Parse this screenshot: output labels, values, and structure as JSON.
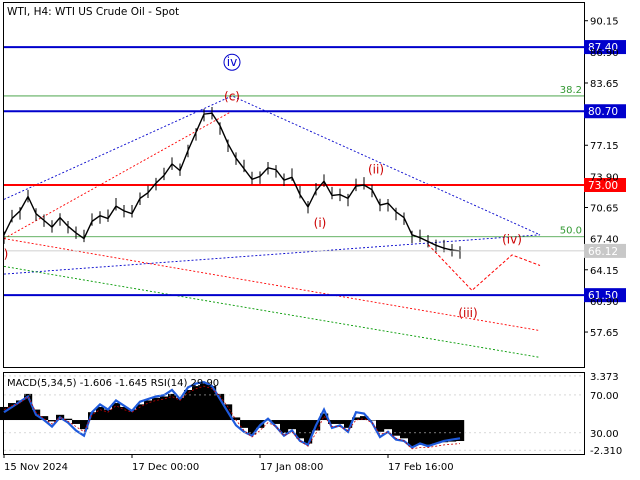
{
  "chart_data": {
    "type": "line",
    "title": "WTI, H4:  WTI US Crude Oil - Spot",
    "symbol": "WTI",
    "timeframe": "H4",
    "instrument": "WTI US Crude Oil - Spot",
    "y_axis": {
      "ticks": [
        90.15,
        83.65,
        77.15,
        70.65,
        64.15,
        57.65
      ],
      "ticks_partial": [
        "86.90",
        "73.90",
        "67.40",
        "60.90"
      ],
      "ylim": [
        54.0,
        92.0
      ]
    },
    "x_axis": {
      "ticks": [
        "15 Nov 2024",
        "17 Dec 00:00",
        "17 Jan 08:00",
        "17 Feb 16:00"
      ],
      "tick_index": [
        0,
        32,
        64,
        96
      ],
      "xlim": [
        0,
        145
      ]
    },
    "price_series": {
      "name": "",
      "color": "#000000",
      "x": [
        0,
        2,
        4,
        6,
        8,
        10,
        12,
        14,
        16,
        18,
        20,
        22,
        24,
        26,
        28,
        30,
        32,
        34,
        36,
        38,
        40,
        42,
        44,
        46,
        48,
        50,
        52,
        54,
        56,
        58,
        60,
        62,
        64,
        66,
        68,
        70,
        72,
        74,
        76,
        78,
        80,
        82,
        84,
        86,
        88,
        90,
        92,
        94,
        96,
        98,
        100,
        102,
        104,
        106,
        108,
        110,
        112,
        114
      ],
      "y": [
        67.8,
        69.5,
        70.3,
        71.8,
        70.0,
        69.3,
        68.6,
        69.6,
        68.7,
        68.0,
        67.4,
        69.2,
        69.8,
        69.5,
        70.8,
        70.3,
        70.0,
        71.6,
        72.2,
        73.2,
        74.0,
        75.2,
        74.5,
        76.6,
        78.5,
        80.4,
        80.5,
        79.2,
        77.3,
        75.8,
        74.7,
        73.6,
        73.9,
        74.8,
        74.6,
        73.5,
        73.8,
        72.0,
        70.7,
        72.4,
        73.4,
        71.9,
        72.0,
        71.6,
        72.9,
        73.0,
        72.5,
        70.9,
        71.1,
        70.2,
        69.6,
        67.8,
        67.5,
        67.1,
        66.7,
        66.4,
        66.2,
        66.12
      ]
    },
    "current_price": "66.12",
    "horizontal_levels": [
      {
        "value": 87.4,
        "label": "87.40",
        "color": "#0000cc"
      },
      {
        "value": 80.7,
        "label": "80.70",
        "color": "#0000cc"
      },
      {
        "value": 73.0,
        "label": "73.00",
        "color": "#ff0000"
      },
      {
        "value": 61.5,
        "label": "61.50",
        "color": "#0000cc"
      }
    ],
    "fib_levels": [
      {
        "value": 82.3,
        "label": "38.2",
        "color": "#339933"
      },
      {
        "value": 67.6,
        "label": "50.0",
        "color": "#339933"
      }
    ],
    "wave_labels": [
      {
        "text": "iv",
        "x": 57,
        "y": 85.4,
        "color": "#0000cc",
        "circled": true
      },
      {
        "text": "(c)",
        "x": 57,
        "y": 81.8,
        "color": "#cc0000",
        "circled": false
      },
      {
        "text": "(ii)",
        "x": 93,
        "y": 74.2,
        "color": "#cc0000",
        "circled": false
      },
      {
        "text": "(i)",
        "x": 79,
        "y": 68.6,
        "color": "#cc0000",
        "circled": false
      },
      {
        "text": "(iv)",
        "x": 127,
        "y": 66.9,
        "color": "#cc0000",
        "circled": false
      },
      {
        "text": "(iii)",
        "x": 116,
        "y": 59.2,
        "color": "#cc0000",
        "circled": false
      },
      {
        "text": ")",
        "x": 0.5,
        "y": 65.4,
        "color": "#cc0000",
        "circled": false
      }
    ],
    "projection_path": {
      "color": "#ff0000",
      "x": [
        106,
        117,
        127,
        134
      ],
      "y": [
        66.8,
        62.0,
        65.7,
        64.6
      ]
    },
    "trend_lines": [
      {
        "color": "#0000cc",
        "x": [
          0,
          57,
          134
        ],
        "y": [
          71.5,
          82.3,
          67.8
        ]
      },
      {
        "color": "#0000cc",
        "x": [
          0,
          134
        ],
        "y": [
          63.7,
          67.8
        ]
      },
      {
        "color": "#ff0000",
        "x": [
          0,
          57
        ],
        "y": [
          67.4,
          80.7
        ]
      },
      {
        "color": "#ff0000",
        "x": [
          0,
          134
        ],
        "y": [
          67.4,
          57.8
        ]
      },
      {
        "color": "#009900",
        "x": [
          0,
          134
        ],
        "y": [
          64.5,
          55.0
        ]
      }
    ],
    "indicator": {
      "label": "MACD(5,34,5) -1.606 -1.645 RSI(14) 29.90",
      "ticks": [
        "3.373",
        "70.00",
        "30.00",
        "-2.310"
      ],
      "tick_values": [
        3.373,
        1.92,
        -0.98,
        -2.31
      ],
      "ylim": [
        -2.6,
        3.6
      ],
      "rsi_color": "#1e5adc",
      "macd": [
        1.0,
        1.3,
        1.5,
        2.0,
        0.8,
        0.3,
        -0.1,
        0.4,
        0.1,
        -0.3,
        -0.7,
        0.6,
        1.0,
        0.8,
        1.3,
        1.0,
        0.8,
        1.2,
        1.5,
        1.7,
        1.8,
        2.0,
        1.7,
        2.3,
        2.6,
        2.8,
        2.6,
        2.0,
        1.2,
        0.2,
        -0.6,
        -1.1,
        -0.6,
        0.0,
        -0.3,
        -1.0,
        -0.7,
        -1.4,
        -1.8,
        -0.8,
        0.5,
        -0.3,
        -0.3,
        -0.6,
        0.2,
        0.3,
        0.0,
        -0.9,
        -0.7,
        -1.2,
        -1.4,
        -2.0,
        -1.9,
        -1.9,
        -1.8,
        -1.7,
        -1.65,
        -1.606
      ],
      "rsi": [
        0.6,
        1.0,
        1.4,
        1.8,
        0.4,
        0.0,
        -0.5,
        0.2,
        -0.2,
        -0.8,
        -1.2,
        0.6,
        1.2,
        0.8,
        1.5,
        1.1,
        0.7,
        1.4,
        1.6,
        1.8,
        1.9,
        2.3,
        1.6,
        2.5,
        2.8,
        2.9,
        2.6,
        1.6,
        0.6,
        -0.4,
        -0.9,
        -1.2,
        -0.4,
        0.1,
        -0.5,
        -1.2,
        -0.8,
        -1.6,
        -1.9,
        -0.4,
        0.8,
        -0.6,
        -0.4,
        -0.9,
        0.6,
        0.5,
        -0.2,
        -1.3,
        -0.9,
        -1.5,
        -1.6,
        -2.1,
        -1.8,
        -2.0,
        -1.8,
        -1.6,
        -1.5,
        -1.4
      ]
    }
  }
}
